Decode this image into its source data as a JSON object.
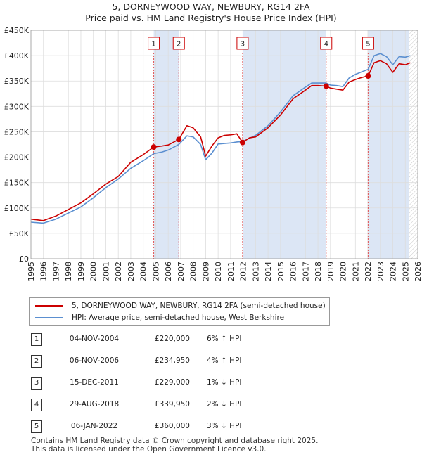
{
  "title_line1": "5, DORNEYWOOD WAY, NEWBURY, RG14 2FA",
  "title_line2": "Price paid vs. HM Land Registry's House Price Index (HPI)",
  "colors": {
    "property": "#cc0000",
    "hpi": "#5b8fd0",
    "shade": "#dce6f5",
    "grid": "#dddddd"
  },
  "chart_data": {
    "type": "line",
    "x_range": [
      1995,
      2026
    ],
    "y_range": [
      0,
      450000
    ],
    "x_ticks": [
      "1995",
      "1996",
      "1997",
      "1998",
      "1999",
      "2000",
      "2001",
      "2002",
      "2003",
      "2004",
      "2005",
      "2006",
      "2007",
      "2008",
      "2009",
      "2010",
      "2011",
      "2012",
      "2013",
      "2014",
      "2015",
      "2016",
      "2017",
      "2018",
      "2019",
      "2020",
      "2021",
      "2022",
      "2023",
      "2024",
      "2025",
      "2026"
    ],
    "y_ticks": [
      {
        "value": 0,
        "label": "£0"
      },
      {
        "value": 50000,
        "label": "£50K"
      },
      {
        "value": 100000,
        "label": "£100K"
      },
      {
        "value": 150000,
        "label": "£150K"
      },
      {
        "value": 200000,
        "label": "£200K"
      },
      {
        "value": 250000,
        "label": "£250K"
      },
      {
        "value": 300000,
        "label": "£300K"
      },
      {
        "value": 350000,
        "label": "£350K"
      },
      {
        "value": 400000,
        "label": "£400K"
      },
      {
        "value": 450000,
        "label": "£450K"
      }
    ],
    "shaded_periods": [
      [
        2004.84,
        2006.85
      ],
      [
        2011.96,
        2018.66
      ],
      [
        2022.02,
        2025.3
      ]
    ],
    "projection_from": 2025.3,
    "series": [
      {
        "name": "5, DORNEYWOOD WAY, NEWBURY, RG14 2FA (semi-detached house)",
        "color": "#cc0000",
        "points": [
          [
            1995.0,
            78000
          ],
          [
            1996.0,
            75000
          ],
          [
            1997.0,
            84000
          ],
          [
            1998.0,
            97000
          ],
          [
            1999.0,
            110000
          ],
          [
            2000.0,
            128000
          ],
          [
            2001.0,
            147000
          ],
          [
            2002.0,
            162000
          ],
          [
            2003.0,
            190000
          ],
          [
            2004.0,
            205000
          ],
          [
            2004.84,
            220000
          ],
          [
            2005.5,
            222000
          ],
          [
            2006.0,
            224000
          ],
          [
            2006.85,
            234950
          ],
          [
            2007.5,
            262000
          ],
          [
            2008.0,
            258000
          ],
          [
            2008.6,
            240000
          ],
          [
            2009.0,
            202000
          ],
          [
            2009.5,
            222000
          ],
          [
            2010.0,
            238000
          ],
          [
            2010.5,
            243000
          ],
          [
            2011.0,
            244000
          ],
          [
            2011.5,
            246000
          ],
          [
            2011.96,
            229000
          ],
          [
            2012.5,
            238000
          ],
          [
            2013.0,
            240000
          ],
          [
            2014.0,
            258000
          ],
          [
            2015.0,
            283000
          ],
          [
            2016.0,
            315000
          ],
          [
            2017.0,
            332000
          ],
          [
            2017.5,
            341000
          ],
          [
            2018.0,
            341000
          ],
          [
            2018.66,
            339950
          ],
          [
            2019.0,
            336000
          ],
          [
            2019.5,
            334000
          ],
          [
            2020.0,
            332000
          ],
          [
            2020.5,
            348000
          ],
          [
            2021.0,
            353000
          ],
          [
            2021.5,
            357000
          ],
          [
            2022.02,
            360000
          ],
          [
            2022.5,
            386000
          ],
          [
            2023.0,
            390000
          ],
          [
            2023.5,
            384000
          ],
          [
            2024.0,
            367000
          ],
          [
            2024.5,
            384000
          ],
          [
            2025.0,
            382000
          ],
          [
            2025.4,
            386000
          ]
        ]
      },
      {
        "name": "HPI: Average price, semi-detached house, West Berkshire",
        "color": "#5b8fd0",
        "points": [
          [
            1995.0,
            72000
          ],
          [
            1996.0,
            70000
          ],
          [
            1997.0,
            78000
          ],
          [
            1998.0,
            90000
          ],
          [
            1999.0,
            102000
          ],
          [
            2000.0,
            120000
          ],
          [
            2001.0,
            140000
          ],
          [
            2002.0,
            157000
          ],
          [
            2003.0,
            178000
          ],
          [
            2004.0,
            193000
          ],
          [
            2004.84,
            207000
          ],
          [
            2005.5,
            210000
          ],
          [
            2006.0,
            214000
          ],
          [
            2006.85,
            225000
          ],
          [
            2007.5,
            242000
          ],
          [
            2008.0,
            240000
          ],
          [
            2008.6,
            225000
          ],
          [
            2009.0,
            195000
          ],
          [
            2009.5,
            208000
          ],
          [
            2010.0,
            226000
          ],
          [
            2010.5,
            227000
          ],
          [
            2011.0,
            228000
          ],
          [
            2011.5,
            230000
          ],
          [
            2011.96,
            231000
          ],
          [
            2012.5,
            237000
          ],
          [
            2013.0,
            243000
          ],
          [
            2014.0,
            262000
          ],
          [
            2015.0,
            289000
          ],
          [
            2016.0,
            321000
          ],
          [
            2017.0,
            338000
          ],
          [
            2017.5,
            346000
          ],
          [
            2018.0,
            346000
          ],
          [
            2018.66,
            346000
          ],
          [
            2019.0,
            342000
          ],
          [
            2019.5,
            341000
          ],
          [
            2020.0,
            339000
          ],
          [
            2020.5,
            356000
          ],
          [
            2021.0,
            363000
          ],
          [
            2021.5,
            368000
          ],
          [
            2022.02,
            373000
          ],
          [
            2022.5,
            400000
          ],
          [
            2023.0,
            404000
          ],
          [
            2023.5,
            398000
          ],
          [
            2024.0,
            382000
          ],
          [
            2024.5,
            398000
          ],
          [
            2025.0,
            397000
          ],
          [
            2025.4,
            400000
          ]
        ]
      }
    ],
    "sales_points": [
      [
        2004.84,
        220000
      ],
      [
        2006.85,
        234950
      ],
      [
        2011.96,
        229000
      ],
      [
        2018.66,
        339950
      ],
      [
        2022.02,
        360000
      ]
    ]
  },
  "sales": [
    {
      "n": "1",
      "date": "04-NOV-2004",
      "price": "£220,000",
      "hpi": "6% ↑ HPI"
    },
    {
      "n": "2",
      "date": "06-NOV-2006",
      "price": "£234,950",
      "hpi": "4% ↑ HPI"
    },
    {
      "n": "3",
      "date": "15-DEC-2011",
      "price": "£229,000",
      "hpi": "1% ↓ HPI"
    },
    {
      "n": "4",
      "date": "29-AUG-2018",
      "price": "£339,950",
      "hpi": "2% ↓ HPI"
    },
    {
      "n": "5",
      "date": "06-JAN-2022",
      "price": "£360,000",
      "hpi": "3% ↓ HPI"
    }
  ],
  "footer_line1": "Contains HM Land Registry data © Crown copyright and database right 2025.",
  "footer_line2": "This data is licensed under the Open Government Licence v3.0."
}
